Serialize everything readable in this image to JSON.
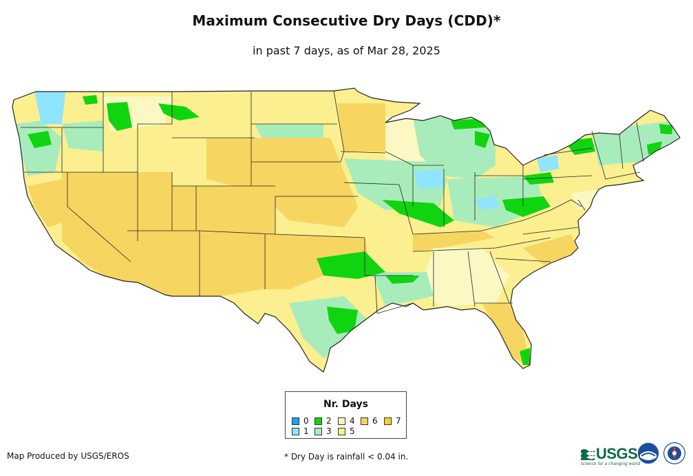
{
  "header": {
    "title": "Maximum Consecutive Dry Days (CDD)*",
    "subtitle": "in past 7 days, as of Mar 28, 2025"
  },
  "legend": {
    "title": "Nr. Days",
    "items": [
      {
        "label": "0",
        "color": "#1ea0ff"
      },
      {
        "label": "1",
        "color": "#8fe4ff"
      },
      {
        "label": "2",
        "color": "#11d411"
      },
      {
        "label": "3",
        "color": "#a9ecbc"
      },
      {
        "label": "4",
        "color": "#fbf8c3"
      },
      {
        "label": "5",
        "color": "#fbef8f"
      },
      {
        "label": "6",
        "color": "#f7d561"
      },
      {
        "label": "7",
        "color": "#ffcc33"
      }
    ]
  },
  "footer": {
    "credit": "Map Produced by USGS/EROS",
    "footnote": "* Dry Day is rainfall < 0.04 in.",
    "usgs_logo_text": "USGS",
    "usgs_tagline": "science for a changing world"
  },
  "icons": {
    "usgs": "usgs-logo-icon",
    "noaa": "noaa-seal-icon",
    "nws": "nws-seal-icon"
  }
}
